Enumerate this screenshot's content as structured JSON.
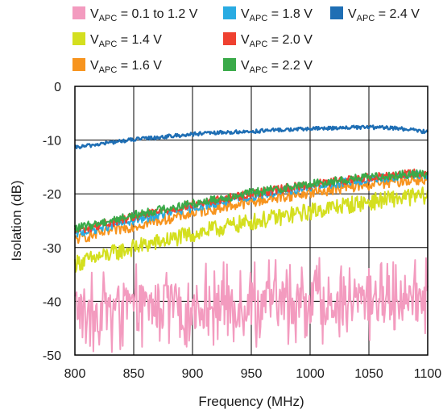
{
  "chart_data": {
    "type": "line",
    "xlabel": "Frequency (MHz)",
    "ylabel": "Isolation (dB)",
    "xlim": [
      800,
      1100
    ],
    "ylim": [
      -50,
      0
    ],
    "x_ticks": [
      800,
      850,
      900,
      950,
      1000,
      1050,
      1100
    ],
    "y_ticks": [
      0,
      -10,
      -20,
      -30,
      -40,
      -50
    ],
    "grid": true,
    "legend_position": "top",
    "series": [
      {
        "name_prefix": "V",
        "name_sub": "APC",
        "name_suffix": " = 0.1 to 1.2 V",
        "color": "#f39bbf",
        "x": [
          800,
          825,
          850,
          875,
          900,
          925,
          950,
          975,
          1000,
          1025,
          1050,
          1075,
          1100
        ],
        "y": [
          -41,
          -41.5,
          -41,
          -41,
          -41,
          -40.5,
          -40.5,
          -40,
          -40,
          -40,
          -39.5,
          -39.5,
          -39.5
        ]
      },
      {
        "name_prefix": "V",
        "name_sub": "APC",
        "name_suffix": " = 1.4 V",
        "color": "#d4df1f",
        "x": [
          800,
          825,
          850,
          875,
          900,
          925,
          950,
          975,
          1000,
          1025,
          1050,
          1075,
          1100
        ],
        "y": [
          -33,
          -31.5,
          -30,
          -28.8,
          -27.5,
          -26.3,
          -25.2,
          -24.3,
          -23.3,
          -22.3,
          -21.5,
          -20.8,
          -20.3
        ]
      },
      {
        "name_prefix": "V",
        "name_sub": "APC",
        "name_suffix": " = 1.6 V",
        "color": "#f7941e",
        "x": [
          800,
          825,
          850,
          875,
          900,
          925,
          950,
          975,
          1000,
          1025,
          1050,
          1075,
          1100
        ],
        "y": [
          -28.5,
          -27.2,
          -26,
          -24.8,
          -23.6,
          -22.5,
          -21.5,
          -20.6,
          -19.8,
          -19,
          -18.3,
          -17.7,
          -17.2
        ]
      },
      {
        "name_prefix": "V",
        "name_sub": "APC",
        "name_suffix": " = 1.8 V",
        "color": "#29abe2",
        "x": [
          800,
          825,
          850,
          875,
          900,
          925,
          950,
          975,
          1000,
          1025,
          1050,
          1075,
          1100
        ],
        "y": [
          -27.5,
          -26.2,
          -25,
          -23.8,
          -22.6,
          -21.5,
          -20.5,
          -19.6,
          -18.8,
          -18,
          -17.3,
          -16.8,
          -16.4
        ]
      },
      {
        "name_prefix": "V",
        "name_sub": "APC",
        "name_suffix": " = 2.0 V",
        "color": "#ef4130",
        "x": [
          800,
          825,
          850,
          875,
          900,
          925,
          950,
          975,
          1000,
          1025,
          1050,
          1075,
          1100
        ],
        "y": [
          -27,
          -25.6,
          -24.4,
          -23.2,
          -22,
          -21,
          -20,
          -19.1,
          -18.3,
          -17.6,
          -16.9,
          -16.4,
          -16
        ]
      },
      {
        "name_prefix": "V",
        "name_sub": "APC",
        "name_suffix": " = 2.2 V",
        "color": "#3aaa49",
        "x": [
          800,
          825,
          850,
          875,
          900,
          925,
          950,
          975,
          1000,
          1025,
          1050,
          1075,
          1100
        ],
        "y": [
          -26.5,
          -25.2,
          -24,
          -22.8,
          -21.8,
          -20.8,
          -19.8,
          -19,
          -18.2,
          -17.5,
          -16.9,
          -16.5,
          -16.2
        ]
      },
      {
        "name_prefix": "V",
        "name_sub": "APC",
        "name_suffix": " = 2.4 V",
        "color": "#1e6eb4",
        "x": [
          800,
          825,
          850,
          875,
          900,
          925,
          950,
          975,
          1000,
          1025,
          1050,
          1075,
          1100
        ],
        "y": [
          -11.4,
          -10.6,
          -9.9,
          -9.4,
          -8.9,
          -8.6,
          -8.4,
          -8.1,
          -7.9,
          -7.7,
          -7.6,
          -7.8,
          -8.5
        ]
      }
    ]
  }
}
